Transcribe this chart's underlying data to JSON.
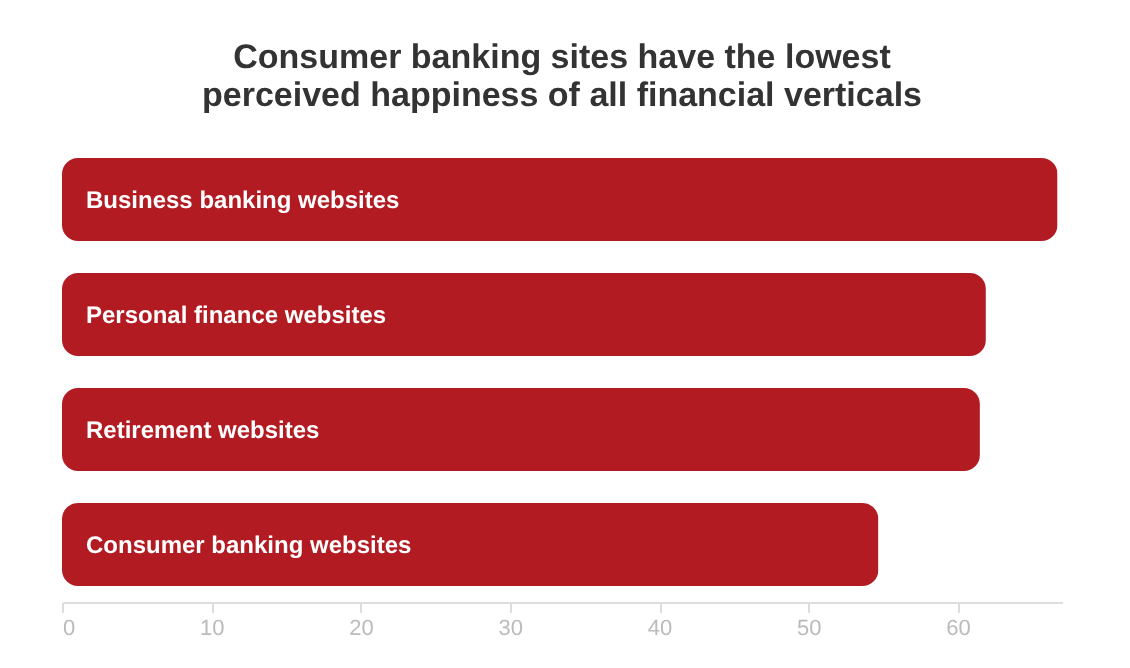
{
  "chart_data": {
    "type": "bar",
    "orientation": "horizontal",
    "title": [
      "Consumer banking sites have the lowest",
      "perceived happiness of all financial verticals"
    ],
    "categories": [
      "Business banking websites",
      "Personal finance websites",
      "Retirement websites",
      "Consumer banking websites"
    ],
    "values": [
      66.7,
      61.9,
      61.5,
      54.7
    ],
    "color": "#b31b23",
    "xlim": [
      0,
      67
    ],
    "xticks": [
      0,
      10,
      20,
      30,
      40,
      50,
      60
    ],
    "grid": false
  }
}
